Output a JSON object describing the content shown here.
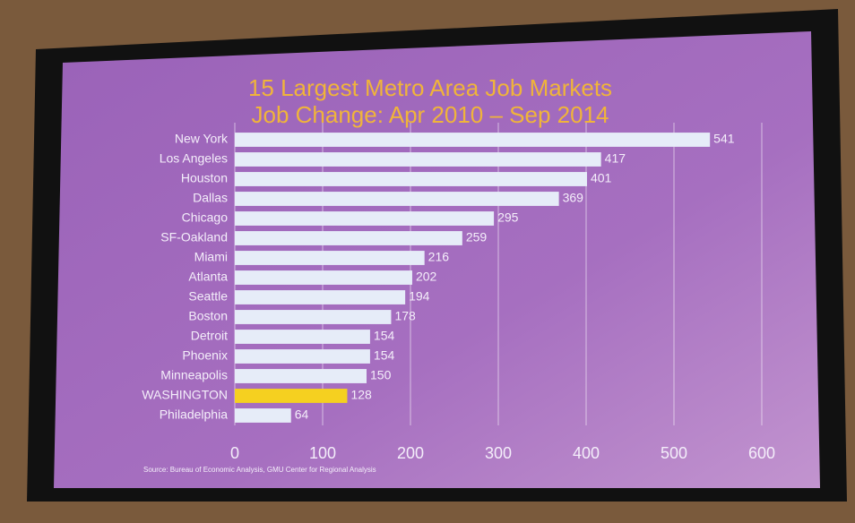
{
  "chart_data": {
    "type": "hbar",
    "title": "15 Largest Metro Area Job Markets",
    "subtitle": "Job Change: Apr 2010 – Sep 2014",
    "source": "Source: Bureau of Economic Analysis, GMU Center for Regional Analysis",
    "categories": [
      "New York",
      "Los Angeles",
      "Houston",
      "Dallas",
      "Chicago",
      "SF-Oakland",
      "Miami",
      "Atlanta",
      "Seattle",
      "Boston",
      "Detroit",
      "Phoenix",
      "Minneapolis",
      "WASHINGTON",
      "Philadelphia"
    ],
    "values": [
      541,
      417,
      401,
      369,
      295,
      259,
      216,
      202,
      194,
      178,
      154,
      154,
      150,
      128,
      64
    ],
    "colors": [
      "#e6ecf8",
      "#e6ecf8",
      "#e6ecf8",
      "#e6ecf8",
      "#e6ecf8",
      "#e6ecf8",
      "#e6ecf8",
      "#e6ecf8",
      "#e6ecf8",
      "#e6ecf8",
      "#e6ecf8",
      "#e6ecf8",
      "#e6ecf8",
      "#f5d020",
      "#e6ecf8"
    ],
    "xlim": [
      0,
      600
    ],
    "xticks": [
      0,
      100,
      200,
      300,
      400,
      500,
      600
    ],
    "grid": true
  }
}
